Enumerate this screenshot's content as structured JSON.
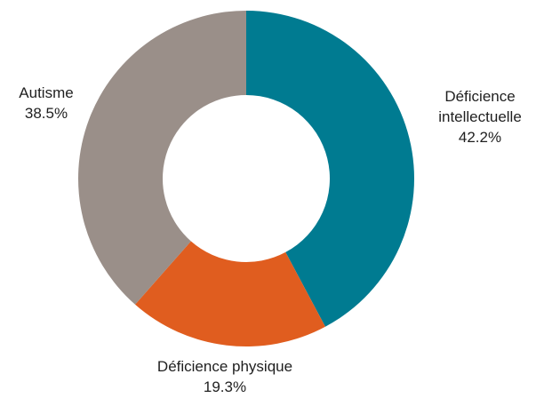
{
  "chart_data": {
    "type": "pie",
    "variant": "donut",
    "title": "",
    "start_angle": "12 o'clock, clockwise",
    "slices": [
      {
        "label_lines": [
          "Déficience",
          "intellectuelle"
        ],
        "value": 42.2,
        "value_text": "42.2%",
        "color": "#007b91"
      },
      {
        "label_lines": [
          "Déficience physique"
        ],
        "value": 19.3,
        "value_text": "19.3%",
        "color": "#e05d1f"
      },
      {
        "label_lines": [
          "Autisme"
        ],
        "value": 38.5,
        "value_text": "38.5%",
        "color": "#9a8f89"
      }
    ]
  }
}
